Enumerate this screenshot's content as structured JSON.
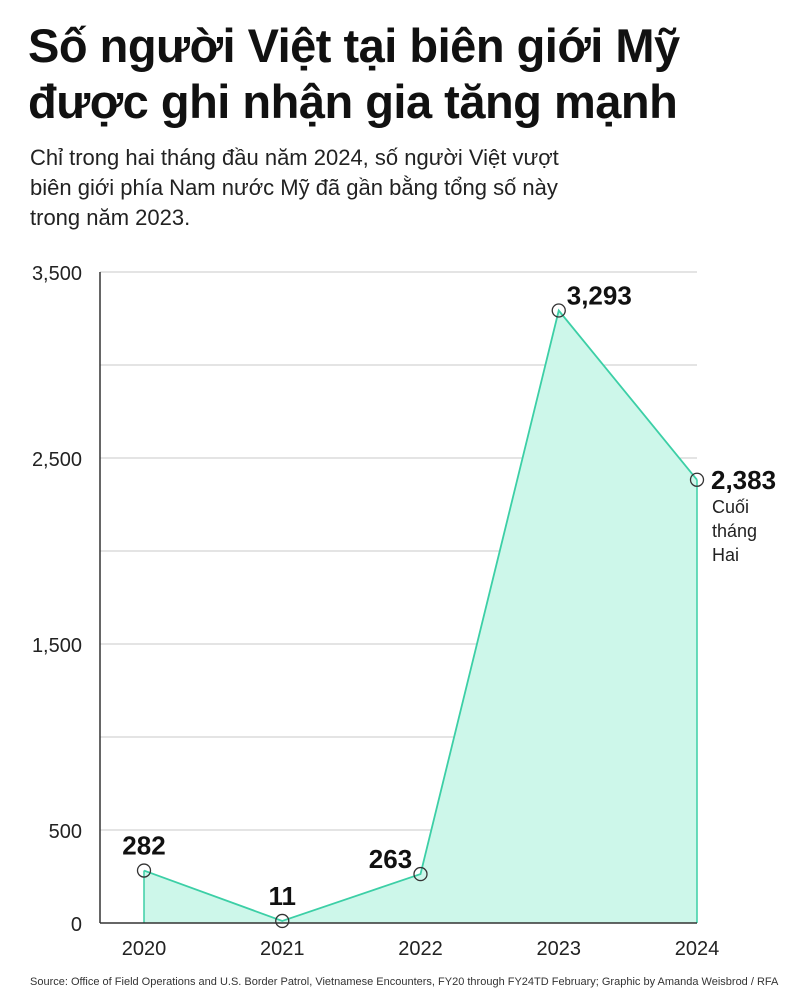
{
  "header": {
    "title_lines": [
      "Số người Việt tại biên giới Mỹ",
      "được ghi nhận gia tăng mạnh"
    ],
    "subtitle_lines": [
      "Chỉ trong hai tháng đầu năm 2024, số người Việt vượt",
      "biên giới phía Nam nước Mỹ đã gần bằng tổng số này",
      "trong năm 2023."
    ]
  },
  "chart_data": {
    "type": "area",
    "x": [
      "2020",
      "2021",
      "2022",
      "2023",
      "2024"
    ],
    "series": [
      {
        "values": [
          282,
          11,
          263,
          3293,
          2383
        ],
        "data_labels": [
          "282",
          "11",
          "263",
          "3,293",
          "2,383"
        ]
      }
    ],
    "annotations": [
      {
        "x": "2024",
        "lines": [
          "Cuối",
          "tháng",
          "Hai"
        ]
      }
    ],
    "ylim": [
      0,
      3500
    ],
    "y_ticks": [
      0,
      500,
      1500,
      2500,
      3500
    ],
    "y_tick_labels": [
      "0",
      "500",
      "1,500",
      "2,500",
      "3,500"
    ],
    "y_gridlines": [
      0,
      500,
      1000,
      1500,
      2000,
      2500,
      3000,
      3500
    ],
    "grid": true,
    "xlabel": "",
    "ylabel": "",
    "colors": {
      "line": "#3ccfa6",
      "fill": "#cdf7ea",
      "grid": "#c8c8c8",
      "axis": "#333333"
    }
  },
  "footer": {
    "source": "Source: Office of Field Operations and U.S. Border Patrol, Vietnamese Encounters, FY20 through FY24TD February; Graphic by Amanda Weisbrod / RFA"
  }
}
